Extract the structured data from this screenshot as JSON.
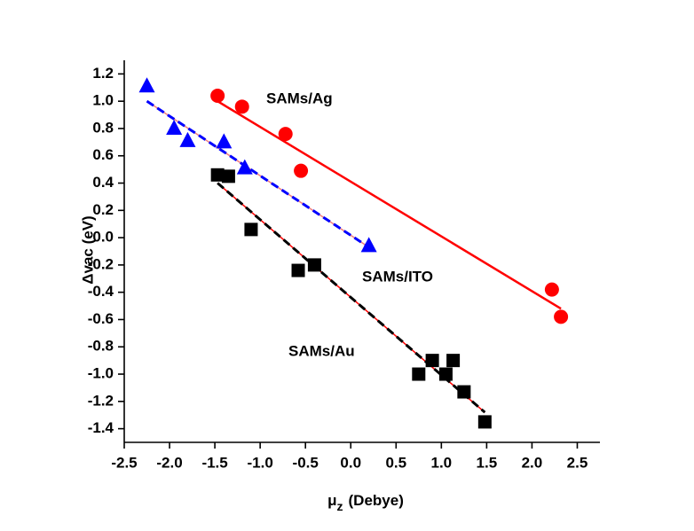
{
  "chart_data": {
    "type": "scatter",
    "x_label": {
      "symbol": "μ",
      "subscript": "z",
      "unit": "(Debye)"
    },
    "y_label": "Δvac (eV)",
    "xlim": [
      -2.5,
      2.75
    ],
    "ylim": [
      -1.5,
      1.3
    ],
    "xticks": [
      -2.5,
      {
        "value": -2,
        "label": "-2.0"
      },
      -1.5,
      {
        "value": -1,
        "label": "-1.0"
      },
      -0.5,
      {
        "value": 0,
        "label": "0.0"
      },
      0.5,
      {
        "value": 1,
        "label": "1.0"
      },
      1.5,
      {
        "value": 2,
        "label": "2.0"
      },
      2.5
    ],
    "yticks": [
      1.2,
      {
        "value": 1,
        "label": "1.0"
      },
      0.8,
      0.6,
      0.4,
      0.2,
      {
        "value": 0,
        "label": "0.0"
      },
      -0.2,
      -0.4,
      -0.6,
      -0.8,
      {
        "value": -1,
        "label": "-1.0"
      },
      -1.2,
      -1.4
    ],
    "series": [
      {
        "name": "SAMs/Ag",
        "marker": "circle",
        "color": "#ff0000",
        "x": [
          -1.47,
          -1.2,
          -0.72,
          -0.55,
          2.22,
          2.32
        ],
        "values": [
          1.04,
          0.96,
          0.76,
          0.49,
          -0.38,
          -0.58
        ],
        "fit_x": [
          -1.47,
          2.32
        ],
        "fit_y": [
          1.0,
          -0.52
        ],
        "fit_color": "#ff0000",
        "fit_dash_color": null
      },
      {
        "name": "SAMs/ITO",
        "marker": "triangle",
        "color": "#0000ff",
        "x": [
          -2.25,
          -1.95,
          -1.8,
          -1.4,
          -1.17,
          0.2
        ],
        "values": [
          1.11,
          0.8,
          0.71,
          0.7,
          0.51,
          -0.06
        ],
        "fit_x": [
          -2.25,
          0.2
        ],
        "fit_y": [
          1.0,
          -0.07
        ],
        "fit_color": "#f08080",
        "fit_dash_color": "#0000ff"
      },
      {
        "name": "SAMs/Au",
        "marker": "square",
        "color": "#000000",
        "x": [
          -1.47,
          -1.35,
          -1.1,
          -0.58,
          -0.4,
          0.75,
          0.9,
          1.05,
          1.13,
          1.25,
          1.48
        ],
        "values": [
          0.46,
          0.45,
          0.06,
          -0.24,
          -0.2,
          -1.0,
          -0.9,
          -1.0,
          -0.9,
          -1.13,
          -1.35
        ],
        "fit_x": [
          -1.47,
          1.48
        ],
        "fit_y": [
          0.4,
          -1.28
        ],
        "fit_color": "#ff0000",
        "fit_dash_color": "#000000"
      }
    ]
  }
}
